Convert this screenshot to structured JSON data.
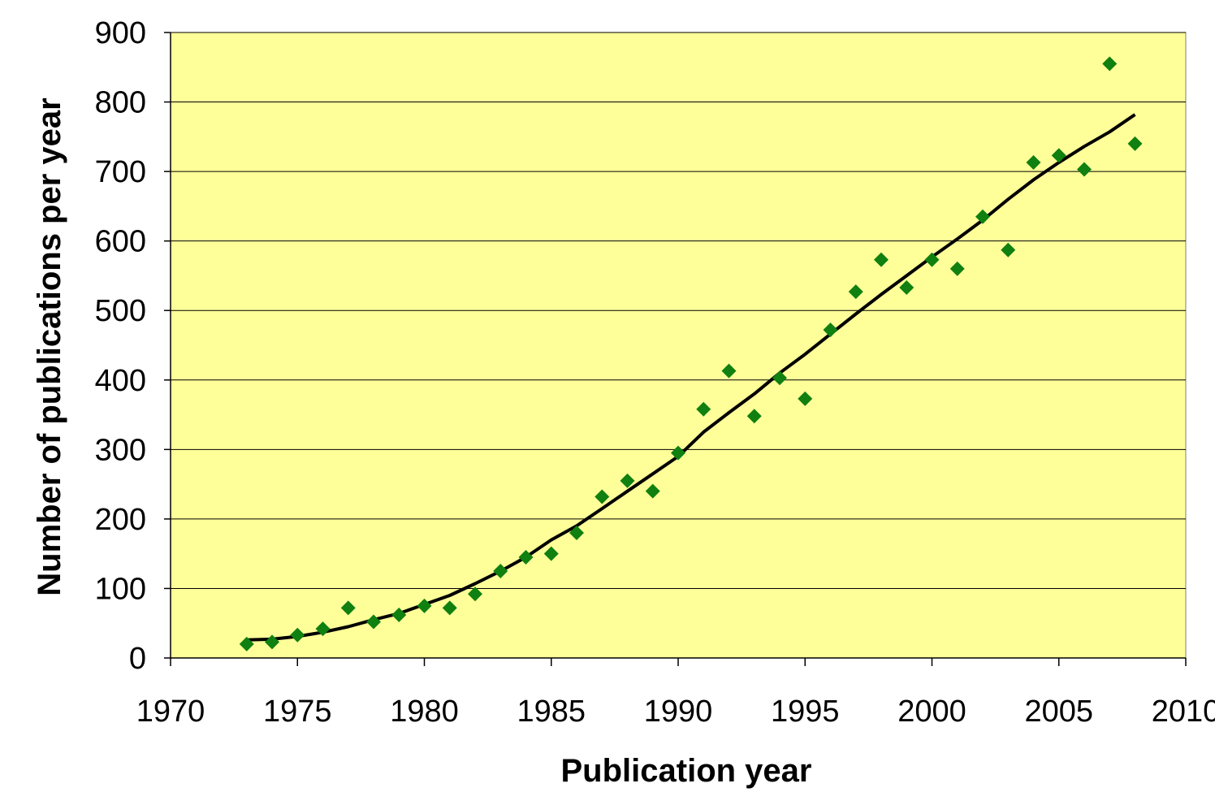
{
  "colors": {
    "plot_background": "#ffff99",
    "gridline": "#000000",
    "marker": "#108010",
    "trend_line": "#000000"
  },
  "chart_data": {
    "type": "scatter",
    "title": "",
    "xlabel": "Publication year",
    "ylabel": "Number of publications per year",
    "xlim": [
      1970,
      2010
    ],
    "ylim": [
      0,
      900
    ],
    "x_ticks": [
      1970,
      1975,
      1980,
      1985,
      1990,
      1995,
      2000,
      2005,
      2010
    ],
    "y_ticks": [
      0,
      100,
      200,
      300,
      400,
      500,
      600,
      700,
      800,
      900
    ],
    "grid": "horizontal",
    "legend": "none",
    "marker_shape": "diamond",
    "series": [
      {
        "x": [
          1973,
          1974,
          1975,
          1976,
          1977,
          1978,
          1979,
          1980,
          1981,
          1982,
          1983,
          1984,
          1985,
          1986,
          1987,
          1988,
          1989,
          1990,
          1991,
          1992,
          1993,
          1994,
          1995,
          1996,
          1997,
          1998,
          1999,
          2000,
          2001,
          2002,
          2003,
          2004,
          2005,
          2006,
          2007,
          2008
        ],
        "y": [
          20,
          23,
          33,
          42,
          72,
          52,
          62,
          75,
          72,
          92,
          125,
          145,
          150,
          180,
          232,
          255,
          240,
          295,
          358,
          413,
          348,
          403,
          373,
          472,
          527,
          573,
          533,
          573,
          560,
          635,
          587,
          713,
          723,
          703,
          855,
          740
        ]
      }
    ],
    "trend_line": {
      "x": [
        1973,
        1974,
        1975,
        1976,
        1977,
        1978,
        1979,
        1980,
        1981,
        1982,
        1983,
        1984,
        1985,
        1986,
        1987,
        1988,
        1989,
        1990,
        1991,
        1992,
        1993,
        1994,
        1995,
        1996,
        1997,
        1998,
        1999,
        2000,
        2001,
        2002,
        2003,
        2004,
        2005,
        2006,
        2007,
        2008
      ],
      "y": [
        26,
        27,
        31,
        37,
        45,
        55,
        64,
        77,
        90,
        107,
        125,
        145,
        170,
        190,
        215,
        240,
        265,
        290,
        325,
        353,
        380,
        410,
        437,
        466,
        495,
        523,
        550,
        577,
        603,
        630,
        660,
        688,
        713,
        736,
        757,
        782
      ]
    }
  }
}
